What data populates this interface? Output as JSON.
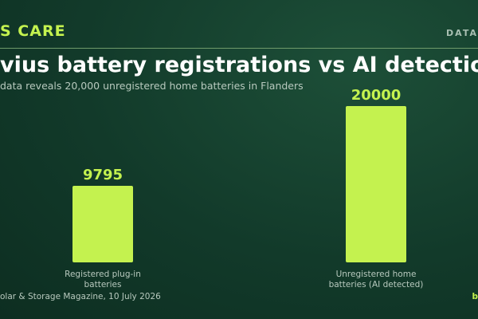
{
  "header": {
    "brand": "S CARE",
    "section_tag": "DATA"
  },
  "colors": {
    "accent": "#c4f24f",
    "background": "#123a2a",
    "muted_text": "#b8c9be",
    "rule": "#6f9a6a"
  },
  "chart_data": {
    "type": "bar",
    "title": "vius battery registrations vs AI detection",
    "subtitle": "data reveals 20,000 unregistered home batteries in Flanders",
    "categories_lines": [
      [
        "Registered plug-in",
        "batteries"
      ],
      [
        "Unregistered home",
        "batteries (AI detected)"
      ]
    ],
    "values": [
      9795,
      20000
    ],
    "value_labels": [
      "9795",
      "20000"
    ],
    "ylim": [
      0,
      20000
    ],
    "grid": false,
    "legend": "none",
    "bar_color": "#c4f24f"
  },
  "footer": {
    "source": "olar & Storage Magazine, 10 July 2026",
    "credit": "b"
  }
}
